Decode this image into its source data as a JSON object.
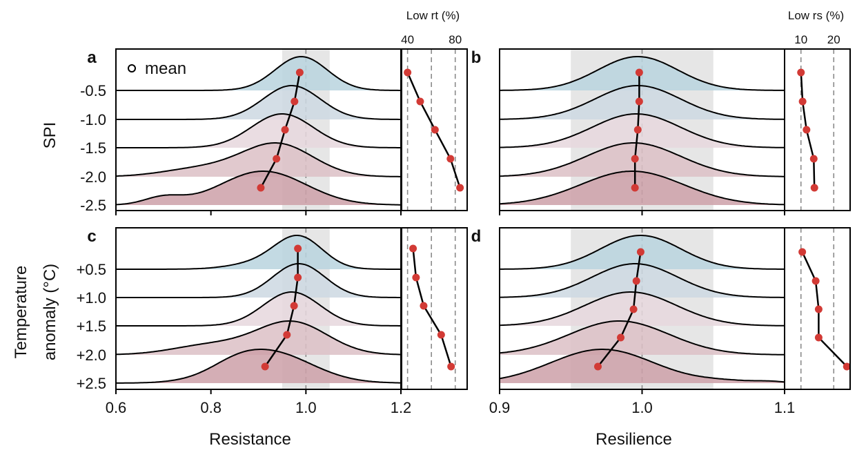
{
  "chart_data": {
    "type": "ridgeline",
    "colors": {
      "fills": [
        "#b9d3de",
        "#cdd8e2",
        "#e6d7dd",
        "#dcbfc6",
        "#cda0a8"
      ],
      "mean_marker": "#d23a35",
      "band": "#e6e6e6",
      "dashed": "#8a8a8a",
      "line": "#000000"
    },
    "legend": {
      "label": "mean",
      "marker": "open-circle"
    },
    "panels": [
      {
        "id": "a",
        "letter": "a",
        "ylabel": [
          "SPI"
        ],
        "ytick_labels": [
          "-0.5",
          "-1.0",
          "-1.5",
          "-2.0",
          "-2.5"
        ],
        "show_ytick_labels": true,
        "show_legend": true,
        "xlabel": "",
        "xlim": [
          0.6,
          1.2
        ],
        "xticks": [
          0.6,
          0.8,
          1.0,
          1.2
        ],
        "xtick_labels": [],
        "reference_line": 1.0,
        "band": [
          0.95,
          1.05
        ],
        "means": [
          0.987,
          0.976,
          0.956,
          0.938,
          0.905
        ],
        "densities": [
          [
            [
              0.99,
              0.055,
              1.0
            ]
          ],
          [
            [
              0.97,
              0.06,
              1.0
            ]
          ],
          [
            [
              0.95,
              0.065,
              1.0
            ]
          ],
          [
            [
              0.94,
              0.075,
              1.0
            ],
            [
              0.78,
              0.08,
              0.25
            ]
          ],
          [
            [
              0.91,
              0.09,
              1.0
            ],
            [
              0.7,
              0.04,
              0.22
            ]
          ]
        ],
        "side": {
          "title": "Low rt (%)",
          "xlim": [
            35,
            90
          ],
          "xticks": [
            40,
            80
          ],
          "dashed": [
            40,
            60,
            80
          ],
          "values": [
            40.0,
            50.6,
            63.0,
            76.0,
            84.0
          ]
        }
      },
      {
        "id": "b",
        "letter": "b",
        "ylabel": [],
        "ytick_labels": [],
        "show_ytick_labels": false,
        "show_legend": false,
        "xlabel": "",
        "xlim": [
          0.9,
          1.1
        ],
        "xticks": [
          0.9,
          1.0,
          1.1
        ],
        "xtick_labels": [],
        "reference_line": 1.0,
        "band": [
          0.95,
          1.05
        ],
        "means": [
          0.998,
          0.998,
          0.997,
          0.995,
          0.995
        ],
        "densities": [
          [
            [
              0.997,
              0.028,
              1.0
            ]
          ],
          [
            [
              0.997,
              0.03,
              1.0
            ]
          ],
          [
            [
              0.996,
              0.031,
              1.0
            ]
          ],
          [
            [
              0.994,
              0.033,
              1.0
            ]
          ],
          [
            [
              0.993,
              0.036,
              1.0
            ]
          ]
        ],
        "side": {
          "title": "Low rs (%)",
          "xlim": [
            5,
            25
          ],
          "xticks": [
            10,
            20
          ],
          "dashed": [
            10,
            20
          ],
          "values": [
            10.0,
            10.5,
            11.7,
            13.9,
            14.1
          ]
        }
      },
      {
        "id": "c",
        "letter": "c",
        "ylabel": [
          "Temperature",
          "anomaly (°C)"
        ],
        "ytick_labels": [
          "+0.5",
          "+1.0",
          "+1.5",
          "+2.0",
          "+2.5"
        ],
        "show_ytick_labels": true,
        "show_legend": false,
        "xlabel": "Resistance",
        "xlim": [
          0.6,
          1.2
        ],
        "xticks": [
          0.6,
          0.8,
          1.0,
          1.2
        ],
        "xtick_labels": [
          "0.6",
          "0.8",
          "1.0",
          "1.2"
        ],
        "reference_line": 1.0,
        "band": [
          0.95,
          1.05
        ],
        "means": [
          0.983,
          0.983,
          0.975,
          0.96,
          0.914
        ],
        "densities": [
          [
            [
              0.985,
              0.05,
              1.0
            ],
            [
              0.9,
              0.06,
              0.18
            ]
          ],
          [
            [
              0.985,
              0.055,
              1.0
            ]
          ],
          [
            [
              0.97,
              0.06,
              1.0
            ]
          ],
          [
            [
              0.97,
              0.075,
              1.0
            ],
            [
              0.8,
              0.08,
              0.3
            ]
          ],
          [
            [
              0.92,
              0.09,
              1.0
            ],
            [
              0.85,
              0.05,
              0.15
            ]
          ]
        ],
        "side": {
          "title": "",
          "xlim": [
            35,
            90
          ],
          "xticks": [],
          "dashed": [
            40,
            60,
            80
          ],
          "values": [
            44.6,
            47.1,
            53.5,
            68.2,
            76.5
          ]
        }
      },
      {
        "id": "d",
        "letter": "d",
        "ylabel": [],
        "ytick_labels": [],
        "show_ytick_labels": false,
        "show_legend": false,
        "xlabel": "Resilience",
        "xlim": [
          0.9,
          1.1
        ],
        "xticks": [
          0.9,
          1.0,
          1.1
        ],
        "xtick_labels": [
          "0.9",
          "1.0",
          "1.1"
        ],
        "reference_line": 1.0,
        "band": [
          0.95,
          1.05
        ],
        "means": [
          0.999,
          0.996,
          0.994,
          0.985,
          0.969
        ],
        "densities": [
          [
            [
              0.999,
              0.028,
              1.0
            ]
          ],
          [
            [
              0.995,
              0.03,
              1.0
            ]
          ],
          [
            [
              0.992,
              0.032,
              1.0
            ]
          ],
          [
            [
              0.984,
              0.035,
              1.0
            ]
          ],
          [
            [
              0.972,
              0.036,
              1.0
            ],
            [
              1.06,
              0.02,
              0.06
            ],
            [
              1.09,
              0.01,
              0.04
            ]
          ]
        ],
        "side": {
          "title": "",
          "xlim": [
            5,
            25
          ],
          "xticks": [],
          "dashed": [
            10,
            20
          ],
          "values": [
            10.4,
            14.5,
            15.4,
            15.4,
            24.0
          ]
        }
      }
    ]
  }
}
